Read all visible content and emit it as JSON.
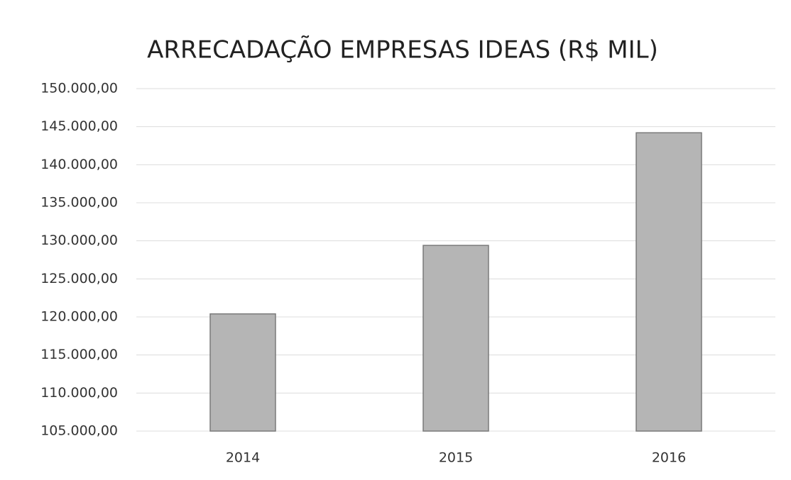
{
  "chart_data": {
    "type": "bar",
    "title": "ARRECADAÇÃO EMPRESAS IDEAS (R$ MIL)",
    "categories": [
      "2014",
      "2015",
      "2016"
    ],
    "values": [
      120400,
      129400,
      144200
    ],
    "color": "#b5b5b5",
    "ylim": [
      105000,
      150000
    ],
    "yticks": [
      {
        "value": 105000,
        "label": "105.000,00"
      },
      {
        "value": 110000,
        "label": "110.000,00"
      },
      {
        "value": 115000,
        "label": "115.000,00"
      },
      {
        "value": 120000,
        "label": "120.000,00"
      },
      {
        "value": 125000,
        "label": "125.000,00"
      },
      {
        "value": 130000,
        "label": "130.000,00"
      },
      {
        "value": 135000,
        "label": "135.000,00"
      },
      {
        "value": 140000,
        "label": "140.000,00"
      },
      {
        "value": 145000,
        "label": "145.000,00"
      },
      {
        "value": 150000,
        "label": "150.000,00"
      }
    ],
    "grid": true
  }
}
